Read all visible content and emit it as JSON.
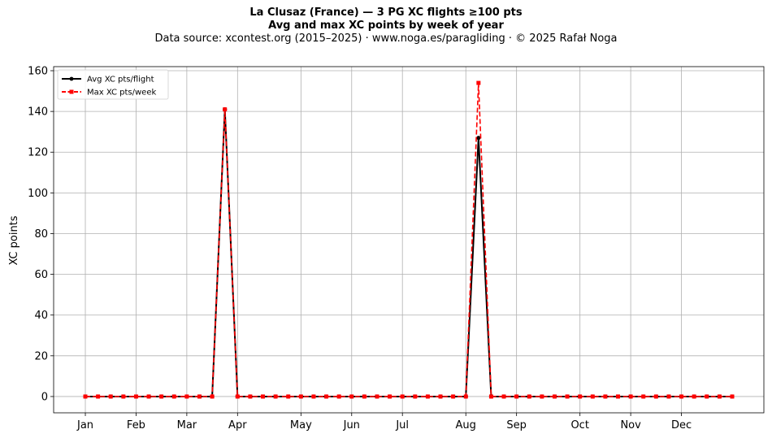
{
  "chart_data": {
    "type": "line",
    "title": "La Clusaz (France)  —  3 PG XC flights ≥100 pts",
    "subtitle": "Avg and max XC points by week of year",
    "source": "Data source: xcontest.org (2015–2025)  ·  www.noga.es/paragliding  ·  © 2025 Rafał Noga",
    "ylabel": "XC points",
    "xlabel": "",
    "xlim": [
      -1.5,
      54.5
    ],
    "ylim": [
      -8,
      162
    ],
    "yticks": [
      0,
      20,
      40,
      60,
      80,
      100,
      120,
      140,
      160
    ],
    "xticks": [
      {
        "label": "Jan",
        "week": 1
      },
      {
        "label": "Feb",
        "week": 5
      },
      {
        "label": "Mar",
        "week": 9
      },
      {
        "label": "Apr",
        "week": 13
      },
      {
        "label": "May",
        "week": 18
      },
      {
        "label": "Jun",
        "week": 22
      },
      {
        "label": "Jul",
        "week": 26
      },
      {
        "label": "Aug",
        "week": 31
      },
      {
        "label": "Sep",
        "week": 35
      },
      {
        "label": "Oct",
        "week": 40
      },
      {
        "label": "Nov",
        "week": 44
      },
      {
        "label": "Dec",
        "week": 48
      }
    ],
    "x": [
      1,
      2,
      3,
      4,
      5,
      6,
      7,
      8,
      9,
      10,
      11,
      12,
      13,
      14,
      15,
      16,
      17,
      18,
      19,
      20,
      21,
      22,
      23,
      24,
      25,
      26,
      27,
      28,
      29,
      30,
      31,
      32,
      33,
      34,
      35,
      36,
      37,
      38,
      39,
      40,
      41,
      42,
      43,
      44,
      45,
      46,
      47,
      48,
      49,
      50,
      51,
      52
    ],
    "grid": true,
    "legend_position": "top-left",
    "series": [
      {
        "name": "Avg XC pts/flight",
        "color": "#000000",
        "style": "solid",
        "marker": "circle",
        "values": [
          0,
          0,
          0,
          0,
          0,
          0,
          0,
          0,
          0,
          0,
          0,
          141,
          0,
          0,
          0,
          0,
          0,
          0,
          0,
          0,
          0,
          0,
          0,
          0,
          0,
          0,
          0,
          0,
          0,
          0,
          0,
          127,
          0,
          0,
          0,
          0,
          0,
          0,
          0,
          0,
          0,
          0,
          0,
          0,
          0,
          0,
          0,
          0,
          0,
          0,
          0,
          0
        ]
      },
      {
        "name": "Max XC pts/week",
        "color": "#ff0000",
        "style": "dashed",
        "marker": "square",
        "values": [
          0,
          0,
          0,
          0,
          0,
          0,
          0,
          0,
          0,
          0,
          0,
          141,
          0,
          0,
          0,
          0,
          0,
          0,
          0,
          0,
          0,
          0,
          0,
          0,
          0,
          0,
          0,
          0,
          0,
          0,
          0,
          154,
          0,
          0,
          0,
          0,
          0,
          0,
          0,
          0,
          0,
          0,
          0,
          0,
          0,
          0,
          0,
          0,
          0,
          0,
          0,
          0
        ]
      }
    ]
  }
}
